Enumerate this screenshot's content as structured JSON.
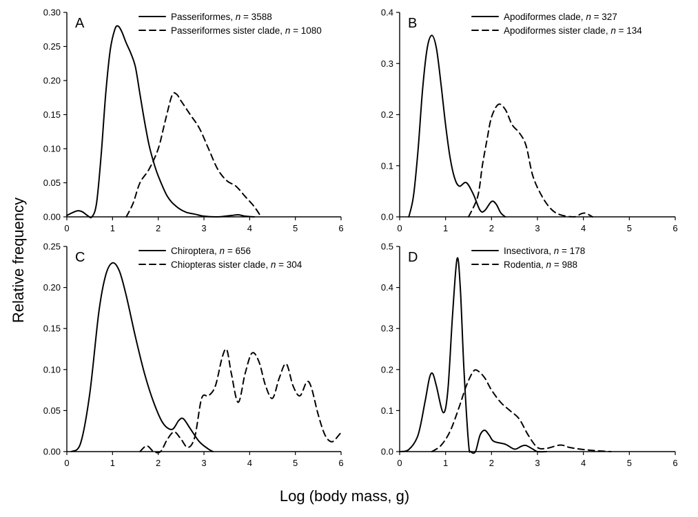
{
  "figure": {
    "ylabel": "Relative frequency",
    "xlabel": "Log (body mass, g)"
  },
  "chart_data": [
    {
      "id": "A",
      "type": "line",
      "panel_label": "A",
      "xlim": [
        0,
        6
      ],
      "ylim": [
        0,
        0.3
      ],
      "x_ticks": [
        0,
        1,
        2,
        3,
        4,
        5,
        6
      ],
      "y_ticks": [
        0,
        0.05,
        0.1,
        0.15,
        0.2,
        0.25,
        0.3
      ],
      "y_decimals": 2,
      "legend_position": "top-center",
      "series": [
        {
          "name": "Passeriformes",
          "n_label": "n",
          "n_value": "= 3588",
          "style": "solid",
          "points": [
            [
              0,
              0.002
            ],
            [
              0.15,
              0.007
            ],
            [
              0.25,
              0.009
            ],
            [
              0.35,
              0.007
            ],
            [
              0.45,
              0.002
            ],
            [
              0.55,
              0.0
            ],
            [
              0.65,
              0.02
            ],
            [
              0.75,
              0.09
            ],
            [
              0.85,
              0.18
            ],
            [
              0.95,
              0.245
            ],
            [
              1.05,
              0.275
            ],
            [
              1.12,
              0.28
            ],
            [
              1.2,
              0.272
            ],
            [
              1.3,
              0.255
            ],
            [
              1.4,
              0.24
            ],
            [
              1.5,
              0.22
            ],
            [
              1.6,
              0.18
            ],
            [
              1.7,
              0.14
            ],
            [
              1.8,
              0.105
            ],
            [
              1.9,
              0.08
            ],
            [
              2.0,
              0.06
            ],
            [
              2.2,
              0.03
            ],
            [
              2.4,
              0.015
            ],
            [
              2.6,
              0.007
            ],
            [
              2.8,
              0.004
            ],
            [
              3.0,
              0.001
            ],
            [
              3.3,
              0.0
            ],
            [
              3.6,
              0.002
            ],
            [
              3.75,
              0.003
            ],
            [
              3.9,
              0.001
            ],
            [
              4.1,
              0.0
            ]
          ]
        },
        {
          "name": "Passeriformes sister clade",
          "n_label": "n",
          "n_value": "= 1080",
          "style": "dashed",
          "points": [
            [
              1.3,
              0.0
            ],
            [
              1.45,
              0.02
            ],
            [
              1.6,
              0.05
            ],
            [
              1.8,
              0.07
            ],
            [
              2.0,
              0.1
            ],
            [
              2.15,
              0.14
            ],
            [
              2.3,
              0.178
            ],
            [
              2.4,
              0.18
            ],
            [
              2.5,
              0.17
            ],
            [
              2.7,
              0.15
            ],
            [
              2.9,
              0.13
            ],
            [
              3.1,
              0.1
            ],
            [
              3.3,
              0.07
            ],
            [
              3.5,
              0.053
            ],
            [
              3.7,
              0.045
            ],
            [
              3.9,
              0.03
            ],
            [
              4.1,
              0.015
            ],
            [
              4.25,
              0.0
            ]
          ]
        }
      ]
    },
    {
      "id": "B",
      "type": "line",
      "panel_label": "B",
      "xlim": [
        0,
        6
      ],
      "ylim": [
        0,
        0.4
      ],
      "x_ticks": [
        0,
        1,
        2,
        3,
        4,
        5,
        6
      ],
      "y_ticks": [
        0,
        0.1,
        0.2,
        0.3,
        0.4
      ],
      "y_decimals": 1,
      "legend_position": "top-center",
      "series": [
        {
          "name": "Apodiformes clade",
          "n_label": "n",
          "n_value": "= 327",
          "style": "solid",
          "points": [
            [
              0.2,
              0.0
            ],
            [
              0.3,
              0.04
            ],
            [
              0.4,
              0.13
            ],
            [
              0.5,
              0.25
            ],
            [
              0.6,
              0.33
            ],
            [
              0.7,
              0.355
            ],
            [
              0.8,
              0.33
            ],
            [
              0.9,
              0.26
            ],
            [
              1.0,
              0.18
            ],
            [
              1.1,
              0.115
            ],
            [
              1.2,
              0.075
            ],
            [
              1.3,
              0.06
            ],
            [
              1.45,
              0.067
            ],
            [
              1.6,
              0.045
            ],
            [
              1.75,
              0.013
            ],
            [
              1.85,
              0.012
            ],
            [
              2.0,
              0.03
            ],
            [
              2.1,
              0.025
            ],
            [
              2.2,
              0.008
            ],
            [
              2.3,
              0.0
            ]
          ]
        },
        {
          "name": "Apodiformes sister clade",
          "n_label": "n",
          "n_value": "= 134",
          "style": "dashed",
          "points": [
            [
              1.5,
              0.0
            ],
            [
              1.7,
              0.04
            ],
            [
              1.8,
              0.1
            ],
            [
              1.9,
              0.15
            ],
            [
              2.0,
              0.195
            ],
            [
              2.15,
              0.22
            ],
            [
              2.3,
              0.21
            ],
            [
              2.45,
              0.18
            ],
            [
              2.6,
              0.165
            ],
            [
              2.75,
              0.14
            ],
            [
              2.9,
              0.08
            ],
            [
              3.1,
              0.04
            ],
            [
              3.3,
              0.015
            ],
            [
              3.5,
              0.004
            ],
            [
              3.8,
              0.0
            ],
            [
              3.95,
              0.006
            ],
            [
              4.05,
              0.007
            ],
            [
              4.2,
              0.0
            ]
          ]
        }
      ]
    },
    {
      "id": "C",
      "type": "line",
      "panel_label": "C",
      "xlim": [
        0,
        6
      ],
      "ylim": [
        0,
        0.25
      ],
      "x_ticks": [
        0,
        1,
        2,
        3,
        4,
        5,
        6
      ],
      "y_ticks": [
        0,
        0.05,
        0.1,
        0.15,
        0.2,
        0.25
      ],
      "y_decimals": 2,
      "legend_position": "top-center",
      "series": [
        {
          "name": "Chiroptera",
          "n_label": "n",
          "n_value": "= 656",
          "style": "solid",
          "points": [
            [
              0.1,
              0.0
            ],
            [
              0.3,
              0.01
            ],
            [
              0.5,
              0.07
            ],
            [
              0.7,
              0.17
            ],
            [
              0.85,
              0.215
            ],
            [
              1.0,
              0.23
            ],
            [
              1.15,
              0.22
            ],
            [
              1.3,
              0.19
            ],
            [
              1.5,
              0.14
            ],
            [
              1.7,
              0.095
            ],
            [
              1.9,
              0.06
            ],
            [
              2.1,
              0.035
            ],
            [
              2.3,
              0.027
            ],
            [
              2.45,
              0.038
            ],
            [
              2.55,
              0.04
            ],
            [
              2.7,
              0.028
            ],
            [
              2.9,
              0.012
            ],
            [
              3.1,
              0.003
            ],
            [
              3.2,
              0.0
            ]
          ]
        },
        {
          "name": "Chiopteras sister clade",
          "n_label": "n",
          "n_value": "= 304",
          "style": "dashed",
          "points": [
            [
              1.6,
              0.0
            ],
            [
              1.75,
              0.007
            ],
            [
              1.9,
              0.0
            ],
            [
              2.05,
              0.0
            ],
            [
              2.2,
              0.015
            ],
            [
              2.35,
              0.024
            ],
            [
              2.5,
              0.015
            ],
            [
              2.65,
              0.005
            ],
            [
              2.8,
              0.018
            ],
            [
              2.95,
              0.065
            ],
            [
              3.1,
              0.068
            ],
            [
              3.25,
              0.08
            ],
            [
              3.4,
              0.115
            ],
            [
              3.5,
              0.124
            ],
            [
              3.6,
              0.095
            ],
            [
              3.75,
              0.06
            ],
            [
              3.9,
              0.095
            ],
            [
              4.05,
              0.12
            ],
            [
              4.2,
              0.11
            ],
            [
              4.35,
              0.08
            ],
            [
              4.5,
              0.065
            ],
            [
              4.65,
              0.09
            ],
            [
              4.8,
              0.107
            ],
            [
              4.95,
              0.08
            ],
            [
              5.1,
              0.068
            ],
            [
              5.25,
              0.085
            ],
            [
              5.35,
              0.078
            ],
            [
              5.5,
              0.045
            ],
            [
              5.65,
              0.02
            ],
            [
              5.8,
              0.012
            ],
            [
              5.95,
              0.02
            ],
            [
              6.0,
              0.024
            ]
          ]
        }
      ]
    },
    {
      "id": "D",
      "type": "line",
      "panel_label": "D",
      "xlim": [
        0,
        6
      ],
      "ylim": [
        0,
        0.5
      ],
      "x_ticks": [
        0,
        1,
        2,
        3,
        4,
        5,
        6
      ],
      "y_ticks": [
        0,
        0.1,
        0.2,
        0.3,
        0.4,
        0.5
      ],
      "y_decimals": 1,
      "legend_position": "top-center",
      "series": [
        {
          "name": "Insectivora",
          "n_label": "n",
          "n_value": "= 178",
          "style": "solid",
          "points": [
            [
              0.0,
              0.0
            ],
            [
              0.2,
              0.005
            ],
            [
              0.4,
              0.04
            ],
            [
              0.55,
              0.12
            ],
            [
              0.65,
              0.18
            ],
            [
              0.72,
              0.19
            ],
            [
              0.8,
              0.16
            ],
            [
              0.95,
              0.095
            ],
            [
              1.05,
              0.15
            ],
            [
              1.15,
              0.33
            ],
            [
              1.25,
              0.47
            ],
            [
              1.32,
              0.4
            ],
            [
              1.4,
              0.2
            ],
            [
              1.5,
              0.02
            ],
            [
              1.55,
              0.0
            ],
            [
              1.65,
              0.0
            ],
            [
              1.75,
              0.04
            ],
            [
              1.85,
              0.052
            ],
            [
              1.95,
              0.04
            ],
            [
              2.05,
              0.025
            ],
            [
              2.3,
              0.018
            ],
            [
              2.5,
              0.006
            ],
            [
              2.65,
              0.013
            ],
            [
              2.75,
              0.015
            ],
            [
              2.9,
              0.006
            ],
            [
              3.0,
              0.0
            ],
            [
              3.2,
              0.0
            ]
          ]
        },
        {
          "name": "Rodentia",
          "n_label": "n",
          "n_value": "= 988",
          "style": "dashed",
          "points": [
            [
              0.7,
              0.0
            ],
            [
              0.9,
              0.015
            ],
            [
              1.1,
              0.05
            ],
            [
              1.3,
              0.11
            ],
            [
              1.45,
              0.16
            ],
            [
              1.6,
              0.195
            ],
            [
              1.7,
              0.197
            ],
            [
              1.85,
              0.18
            ],
            [
              2.0,
              0.15
            ],
            [
              2.2,
              0.12
            ],
            [
              2.4,
              0.1
            ],
            [
              2.6,
              0.08
            ],
            [
              2.8,
              0.04
            ],
            [
              3.0,
              0.01
            ],
            [
              3.2,
              0.008
            ],
            [
              3.5,
              0.016
            ],
            [
              3.7,
              0.01
            ],
            [
              4.0,
              0.005
            ],
            [
              4.3,
              0.002
            ],
            [
              4.6,
              0.0
            ]
          ]
        }
      ]
    }
  ]
}
